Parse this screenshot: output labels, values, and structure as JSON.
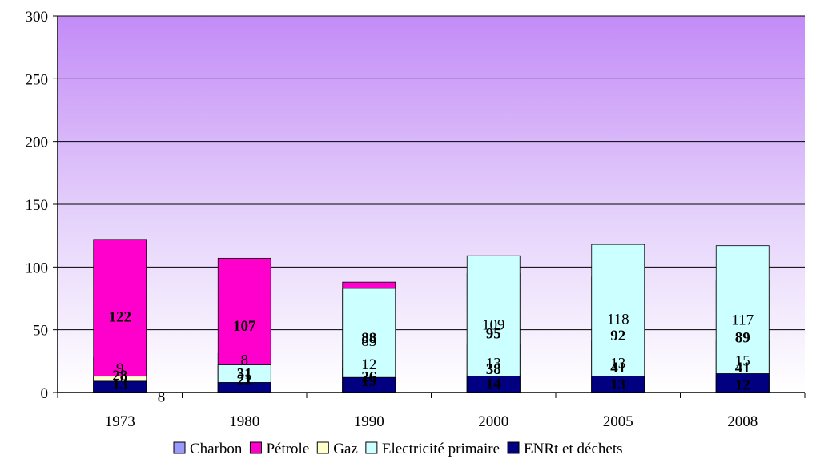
{
  "chart_data": {
    "type": "bar",
    "stacked": true,
    "categories": [
      "1973",
      "1980",
      "1990",
      "2000",
      "2005",
      "2008"
    ],
    "series": [
      {
        "name": "Charbon",
        "color": "#9999ff",
        "values": [
          28,
          31,
          19,
          14,
          13,
          12
        ]
      },
      {
        "name": "Pétrole",
        "color": "#ff00cc",
        "values": [
          122,
          107,
          88,
          95,
          92,
          89
        ]
      },
      {
        "name": "Gaz",
        "color": "#ffffcc",
        "values": [
          13,
          21,
          26,
          38,
          41,
          41
        ]
      },
      {
        "name": "Electricité primaire",
        "color": "#ccffff",
        "values": [
          8,
          22,
          83,
          109,
          118,
          117
        ]
      },
      {
        "name": "ENRt et déchets",
        "color": "#000080",
        "values": [
          9,
          8,
          12,
          13,
          13,
          15
        ]
      }
    ],
    "ylim": [
      0,
      300
    ],
    "yticks": [
      "0",
      "50",
      "100",
      "150",
      "200",
      "250",
      "300"
    ],
    "grid": true,
    "legend_position": "bottom",
    "plot_background": "lavender-gradient"
  }
}
